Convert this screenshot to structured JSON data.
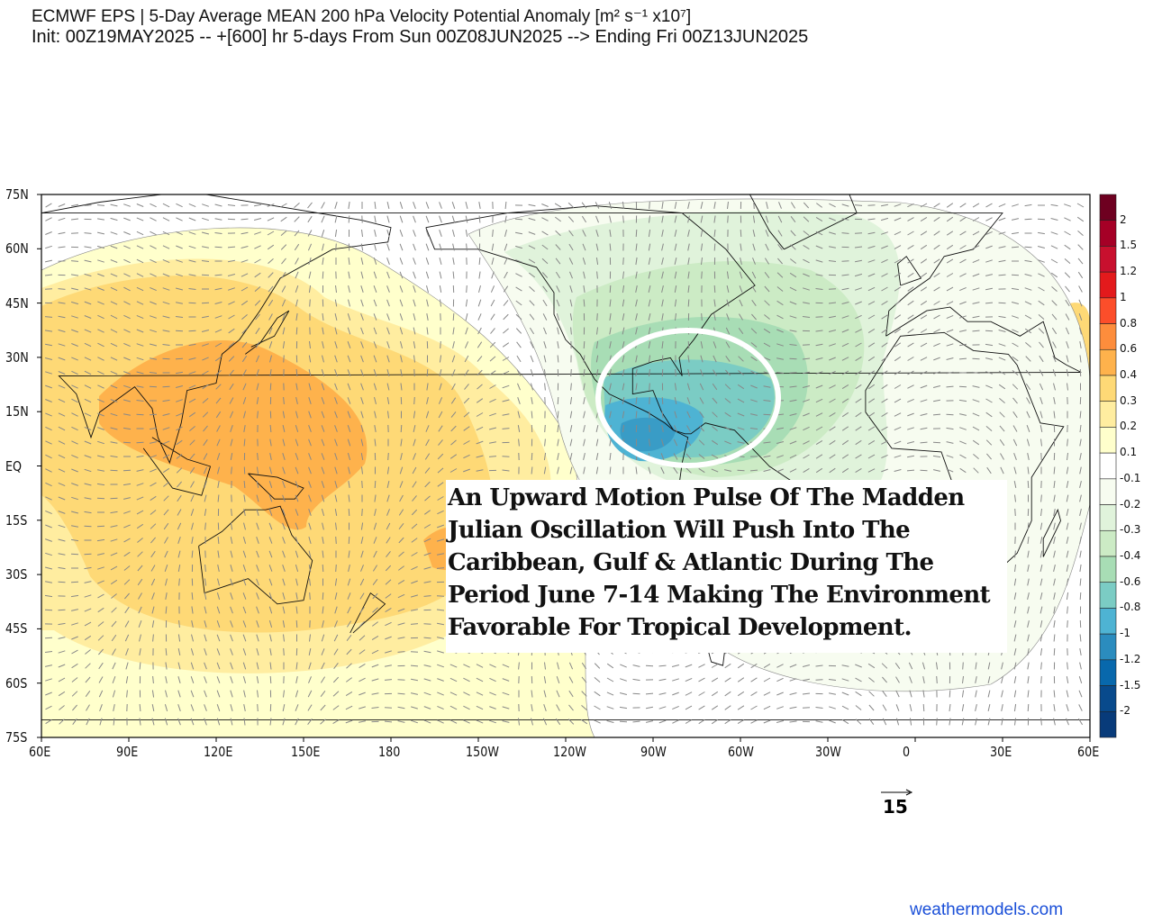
{
  "title_line1": "ECMWF EPS | 5-Day Average MEAN 200 hPa Velocity Potential Anomaly [m² s⁻¹ x10⁷]",
  "title_line2": "Init: 00Z19MAY2025 -- +[600] hr   5-days From Sun 00Z08JUN2025 --> Ending Fri 00Z13JUN2025",
  "lat_labels": [
    "75N",
    "60N",
    "45N",
    "30N",
    "15N",
    "EQ",
    "15S",
    "30S",
    "45S",
    "60S",
    "75S"
  ],
  "lon_labels": [
    "60E",
    "90E",
    "120E",
    "150E",
    "180",
    "150W",
    "120W",
    "90W",
    "60W",
    "30W",
    "0",
    "30E",
    "60E"
  ],
  "colorbar": {
    "labels": [
      "2",
      "1.5",
      "1.2",
      "1",
      "0.8",
      "0.6",
      "0.4",
      "0.3",
      "0.2",
      "0.1",
      "-0.1",
      "-0.2",
      "-0.3",
      "-0.4",
      "-0.6",
      "-0.8",
      "-1",
      "-1.2",
      "-1.5",
      "-2"
    ],
    "colors": [
      "#6e0020",
      "#a50026",
      "#c8102e",
      "#e31a1c",
      "#fc4e2a",
      "#fd8d3c",
      "#feb24c",
      "#fed976",
      "#ffeda0",
      "#ffffcc",
      "#ffffff",
      "#f7fcf0",
      "#e0f3db",
      "#ccebc5",
      "#a8ddb5",
      "#7bccc4",
      "#4eb3d3",
      "#2b8cbe",
      "#0868ac",
      "#084a8c",
      "#083b7a"
    ]
  },
  "annotation": [
    "An Upward Motion Pulse Of The Madden",
    "Julian Oscillation Will Push Into The",
    "Caribbean, Gulf & Atlantic During The",
    "Period June 7-14 Making The Environment",
    "Favorable For Tropical Development."
  ],
  "vector_reference": "15",
  "watermark": "weathermodels.com"
}
